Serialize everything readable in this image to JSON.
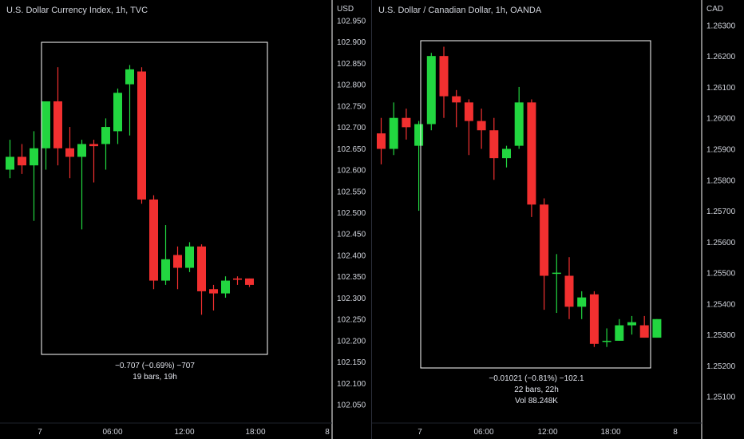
{
  "chart_data": [
    {
      "type": "candlestick",
      "title": "U.S. Dollar Currency Index, 1h, TVC",
      "currency": "USD",
      "ylim": [
        102.025,
        102.975
      ],
      "y_ticks": [
        "102.950",
        "102.900",
        "102.850",
        "102.800",
        "102.750",
        "102.700",
        "102.650",
        "102.600",
        "102.550",
        "102.500",
        "102.450",
        "102.400",
        "102.350",
        "102.300",
        "102.250",
        "102.200",
        "102.150",
        "102.100",
        "102.050"
      ],
      "x_ticks": [
        "7",
        "06:00",
        "12:00",
        "18:00",
        "8"
      ],
      "colors": {
        "up": "#22d640",
        "down": "#f23030",
        "frame": "#ffffff",
        "axis_line": "#ffffff",
        "text": "#d1d4dc"
      },
      "candles": [
        {
          "open": 102.6,
          "high": 102.67,
          "low": 102.58,
          "close": 102.63
        },
        {
          "open": 102.63,
          "high": 102.66,
          "low": 102.59,
          "close": 102.61
        },
        {
          "open": 102.61,
          "high": 102.69,
          "low": 102.48,
          "close": 102.65
        },
        {
          "open": 102.65,
          "high": 102.76,
          "low": 102.6,
          "close": 102.76
        },
        {
          "open": 102.76,
          "high": 102.84,
          "low": 102.61,
          "close": 102.65
        },
        {
          "open": 102.65,
          "high": 102.7,
          "low": 102.58,
          "close": 102.63
        },
        {
          "open": 102.63,
          "high": 102.67,
          "low": 102.46,
          "close": 102.66
        },
        {
          "open": 102.66,
          "high": 102.67,
          "low": 102.57,
          "close": 102.655
        },
        {
          "open": 102.66,
          "high": 102.72,
          "low": 102.6,
          "close": 102.7
        },
        {
          "open": 102.69,
          "high": 102.79,
          "low": 102.66,
          "close": 102.78
        },
        {
          "open": 102.8,
          "high": 102.845,
          "low": 102.68,
          "close": 102.835
        },
        {
          "open": 102.83,
          "high": 102.84,
          "low": 102.52,
          "close": 102.53
        },
        {
          "open": 102.53,
          "high": 102.54,
          "low": 102.32,
          "close": 102.34
        },
        {
          "open": 102.34,
          "high": 102.47,
          "low": 102.33,
          "close": 102.39
        },
        {
          "open": 102.4,
          "high": 102.42,
          "low": 102.32,
          "close": 102.37
        },
        {
          "open": 102.37,
          "high": 102.43,
          "low": 102.36,
          "close": 102.42
        },
        {
          "open": 102.42,
          "high": 102.425,
          "low": 102.26,
          "close": 102.315
        },
        {
          "open": 102.32,
          "high": 102.33,
          "low": 102.27,
          "close": 102.31
        },
        {
          "open": 102.31,
          "high": 102.35,
          "low": 102.3,
          "close": 102.34
        },
        {
          "open": 102.345,
          "high": 102.35,
          "low": 102.33,
          "close": 102.342
        },
        {
          "open": 102.345,
          "high": 102.345,
          "low": 102.325,
          "close": 102.33
        }
      ],
      "measure": {
        "change": "−0.707 (−0.69%) −707",
        "span": "19 bars, 19h",
        "volume": ""
      }
    },
    {
      "type": "candlestick",
      "title": "U.S. Dollar / Canadian Dollar, 1h, OANDA",
      "currency": "CAD",
      "ylim": [
        1.2504,
        1.2635
      ],
      "y_ticks": [
        "1.26300",
        "1.26200",
        "1.26100",
        "1.26000",
        "1.25900",
        "1.25800",
        "1.25700",
        "1.25600",
        "1.25500",
        "1.25400",
        "1.25300",
        "1.25200",
        "1.25100"
      ],
      "x_ticks": [
        "7",
        "06:00",
        "12:00",
        "18:00",
        "8"
      ],
      "colors": {
        "up": "#22d640",
        "down": "#f23030",
        "frame": "#ffffff",
        "axis_line": "#ffffff",
        "text": "#d1d4dc"
      },
      "candles": [
        {
          "open": 1.2595,
          "high": 1.26,
          "low": 1.2585,
          "close": 1.259
        },
        {
          "open": 1.259,
          "high": 1.2605,
          "low": 1.2588,
          "close": 1.26
        },
        {
          "open": 1.26,
          "high": 1.2603,
          "low": 1.2593,
          "close": 1.2597
        },
        {
          "open": 1.2591,
          "high": 1.2599,
          "low": 1.257,
          "close": 1.2598
        },
        {
          "open": 1.2598,
          "high": 1.2621,
          "low": 1.2596,
          "close": 1.262
        },
        {
          "open": 1.262,
          "high": 1.2623,
          "low": 1.26,
          "close": 1.2607
        },
        {
          "open": 1.2607,
          "high": 1.2609,
          "low": 1.2597,
          "close": 1.2605
        },
        {
          "open": 1.2605,
          "high": 1.2606,
          "low": 1.2588,
          "close": 1.2599
        },
        {
          "open": 1.2599,
          "high": 1.2603,
          "low": 1.259,
          "close": 1.2596
        },
        {
          "open": 1.2596,
          "high": 1.26,
          "low": 1.258,
          "close": 1.2587
        },
        {
          "open": 1.2587,
          "high": 1.2591,
          "low": 1.2584,
          "close": 1.259
        },
        {
          "open": 1.2591,
          "high": 1.261,
          "low": 1.259,
          "close": 1.2605
        },
        {
          "open": 1.2605,
          "high": 1.2606,
          "low": 1.2568,
          "close": 1.2572
        },
        {
          "open": 1.2572,
          "high": 1.2574,
          "low": 1.2538,
          "close": 1.2549
        },
        {
          "open": 1.255,
          "high": 1.2556,
          "low": 1.2537,
          "close": 1.255
        },
        {
          "open": 1.2549,
          "high": 1.2555,
          "low": 1.2535,
          "close": 1.2539
        },
        {
          "open": 1.2539,
          "high": 1.2544,
          "low": 1.2535,
          "close": 1.2542
        },
        {
          "open": 1.2543,
          "high": 1.2544,
          "low": 1.2526,
          "close": 1.2527
        },
        {
          "open": 1.2528,
          "high": 1.2532,
          "low": 1.2526,
          "close": 1.2528
        },
        {
          "open": 1.2528,
          "high": 1.2535,
          "low": 1.2528,
          "close": 1.2533
        },
        {
          "open": 1.2533,
          "high": 1.2536,
          "low": 1.253,
          "close": 1.2534
        },
        {
          "open": 1.2533,
          "high": 1.2536,
          "low": 1.2529,
          "close": 1.2529
        },
        {
          "open": 1.2529,
          "high": 1.2535,
          "low": 1.2529,
          "close": 1.2535
        }
      ],
      "measure": {
        "change": "−0.01021 (−0.81%) −102.1",
        "span": "22 bars, 22h",
        "volume": "Vol 88.248K"
      }
    }
  ]
}
